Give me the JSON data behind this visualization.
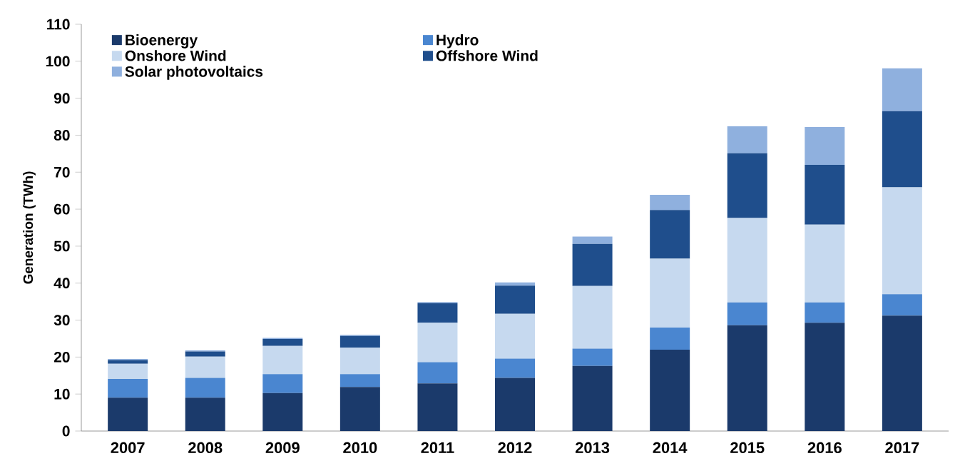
{
  "chart_data": {
    "type": "bar",
    "stacked": true,
    "ylabel": "Generation (TWh)",
    "categories": [
      "2007",
      "2008",
      "2009",
      "2010",
      "2011",
      "2012",
      "2013",
      "2014",
      "2015",
      "2016",
      "2017"
    ],
    "ylim": [
      0,
      110
    ],
    "yticks": [
      0,
      10,
      20,
      30,
      40,
      50,
      60,
      70,
      80,
      90,
      100,
      110
    ],
    "grid": false,
    "legend": "top left",
    "series": [
      {
        "name": "Bioenergy",
        "color": "#1b3a6b",
        "values": [
          9.0,
          9.0,
          10.3,
          11.9,
          12.9,
          14.4,
          17.6,
          22.0,
          28.6,
          29.3,
          31.2
        ]
      },
      {
        "name": "Hydro",
        "color": "#4a86d0",
        "values": [
          5.1,
          5.4,
          5.1,
          3.5,
          5.7,
          5.2,
          4.7,
          6.0,
          6.2,
          5.5,
          5.8
        ]
      },
      {
        "name": "Onshore Wind",
        "color": "#c6d9ef",
        "values": [
          4.1,
          5.7,
          7.6,
          7.2,
          10.7,
          12.1,
          16.9,
          18.6,
          22.8,
          21.0,
          28.9
        ]
      },
      {
        "name": "Offshore Wind",
        "color": "#1f4e8c",
        "values": [
          1.0,
          1.4,
          1.9,
          3.1,
          5.3,
          7.6,
          11.4,
          13.2,
          17.5,
          16.2,
          20.6
        ]
      },
      {
        "name": "Solar photovoltaics",
        "color": "#8fb0de",
        "values": [
          0.3,
          0.3,
          0.3,
          0.3,
          0.3,
          0.9,
          2.0,
          4.1,
          7.3,
          10.2,
          11.6
        ]
      }
    ]
  }
}
